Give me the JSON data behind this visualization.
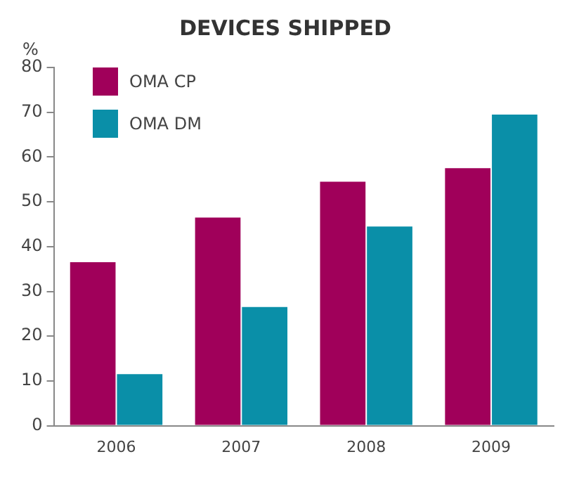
{
  "chart_data": {
    "type": "bar",
    "title": "DEVICES SHIPPED",
    "ylabel": "%",
    "categories": [
      "2006",
      "2007",
      "2008",
      "2009"
    ],
    "series": [
      {
        "name": "OMA CP",
        "color": "#a0005a",
        "values": [
          36.5,
          46.5,
          54.5,
          57.5
        ]
      },
      {
        "name": "OMA DM",
        "color": "#0a8fa8",
        "values": [
          11.5,
          26.5,
          44.5,
          69.5
        ]
      }
    ],
    "ylim": [
      0,
      80
    ],
    "yticks": [
      0,
      10,
      20,
      30,
      40,
      50,
      60,
      70,
      80
    ],
    "grid": false,
    "legend": "top left"
  }
}
